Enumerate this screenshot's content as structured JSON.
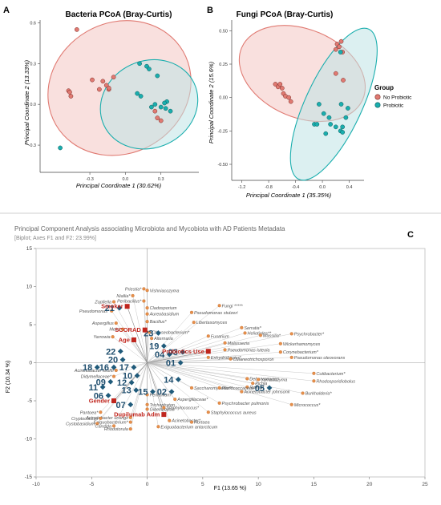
{
  "panels": {
    "a_label": "A",
    "b_label": "B",
    "c_label": "C"
  },
  "colors": {
    "no_probiotic": "#e07a72",
    "no_probiotic_fill": "#f4c7c2",
    "probiotic": "#1aaeae",
    "probiotic_fill": "#bfe3e5",
    "biplot_obs": "#1f5a7a",
    "biplot_var": "#c0261e",
    "biplot_var_label": "#c0261e",
    "biplot_feature": "#e8904b",
    "biplot_obs_label": "#1f4e6e"
  },
  "legend": {
    "title": "Group",
    "items": [
      "No Probiotic",
      "Probiotic"
    ]
  },
  "chart_data": [
    {
      "type": "scatter",
      "title": "Bacteria PCoA (Bray-Curtis)",
      "xlabel": "Principal Coordinate 1 (30.62%)",
      "ylabel": "Principal Coordinate 2 (13.33%)",
      "xlim": [
        -0.72,
        0.62
      ],
      "ylim": [
        -0.5,
        0.62
      ],
      "xticks": [
        -0.3,
        0.0,
        0.3
      ],
      "xtick_labels": [
        "-0.3",
        "0.0",
        "0.3"
      ],
      "yticks": [
        -0.3,
        0.0,
        0.3,
        0.6
      ],
      "ytick_labels": [
        "-0.3",
        "0.0",
        "0.3",
        "0.6"
      ],
      "series": [
        {
          "name": "No Probiotic",
          "x": [
            -0.41,
            -0.48,
            -0.47,
            -0.46,
            -0.28,
            -0.22,
            -0.19,
            -0.16,
            -0.14,
            -0.1,
            0.25,
            0.27,
            0.3,
            -0.14
          ],
          "y": [
            0.55,
            0.1,
            0.09,
            0.06,
            0.18,
            0.11,
            0.17,
            0.14,
            0.11,
            0.2,
            -0.05,
            -0.1,
            -0.12,
            0.12
          ]
        },
        {
          "name": "Probiotic",
          "x": [
            0.12,
            0.18,
            0.2,
            0.27,
            0.1,
            0.13,
            0.25,
            0.3,
            0.35,
            0.34,
            0.38,
            -0.55,
            0.22,
            0.33
          ],
          "y": [
            0.3,
            0.28,
            0.26,
            0.21,
            0.08,
            0.06,
            0.0,
            -0.02,
            0.02,
            -0.03,
            -0.05,
            -0.32,
            -0.02,
            0.01
          ]
        }
      ],
      "ellipses": [
        {
          "group": "No Probiotic",
          "cx": -0.05,
          "cy": 0.12,
          "rx": 0.62,
          "ry": 0.48,
          "angle_deg": -30
        },
        {
          "group": "Probiotic",
          "cx": 0.2,
          "cy": 0.0,
          "rx": 0.42,
          "ry": 0.32,
          "angle_deg": -25
        }
      ]
    },
    {
      "type": "scatter",
      "title": "Fungi PCoA (Bray-Curtis)",
      "xlabel": "Principal Coordinate 1 (35.35%)",
      "ylabel": "Principal Coordinate 2 (15.6%)",
      "xlim": [
        -1.35,
        0.62
      ],
      "ylim": [
        -0.62,
        0.58
      ],
      "xticks": [
        -1.2,
        -0.8,
        -0.4,
        0.0,
        0.4
      ],
      "xtick_labels": [
        "-1.2",
        "-0.8",
        "-0.4",
        "0.0",
        "0.4"
      ],
      "yticks": [
        -0.5,
        -0.25,
        0.0,
        0.25,
        0.5
      ],
      "ytick_labels": [
        "-0.50",
        "-0.25",
        "0.00",
        "0.25",
        "0.50"
      ],
      "series": [
        {
          "name": "No Probiotic",
          "x": [
            -0.7,
            -0.66,
            -0.63,
            -0.6,
            -0.58,
            -0.55,
            -0.5,
            -0.47,
            0.22,
            0.28,
            0.25,
            0.3,
            0.2,
            0.2,
            0.31
          ],
          "y": [
            0.1,
            0.08,
            0.1,
            0.07,
            0.03,
            0.01,
            0.0,
            -0.03,
            0.4,
            0.42,
            0.38,
            0.34,
            0.36,
            0.18,
            0.13
          ]
        },
        {
          "name": "Probiotic",
          "x": [
            0.27,
            -0.05,
            0.02,
            0.1,
            0.12,
            0.2,
            0.27,
            0.35,
            0.38,
            0.28,
            -0.12,
            -0.08,
            0.05,
            0.3,
            0.3
          ],
          "y": [
            0.34,
            -0.05,
            -0.12,
            -0.15,
            -0.2,
            -0.22,
            -0.25,
            -0.15,
            -0.08,
            -0.05,
            -0.2,
            -0.2,
            -0.27,
            -0.26,
            -0.22
          ]
        }
      ],
      "ellipses": [
        {
          "group": "No Probiotic",
          "cx": -0.3,
          "cy": 0.18,
          "rx": 0.98,
          "ry": 0.33,
          "angle_deg": 23
        },
        {
          "group": "Probiotic",
          "cx": 0.17,
          "cy": -0.05,
          "rx": 0.42,
          "ry": 0.62,
          "angle_deg": 25
        }
      ]
    },
    {
      "type": "scatter",
      "title": "Principal Component Analysis associating Microbiota and  Mycobiota with AD Patients Metadata",
      "subtitle": "[Biplot; Axes F1 and F2: 23.99%]",
      "xlabel": "F1 (13.65 %)",
      "ylabel": "F2 (10.34 %)",
      "xlim": [
        -10,
        25
      ],
      "ylim": [
        -15,
        15
      ],
      "xticks": [
        -10,
        -5,
        0,
        5,
        10,
        15,
        20,
        25
      ],
      "yticks": [
        -15,
        -10,
        -5,
        0,
        5,
        10,
        15
      ],
      "grid": false,
      "observations": [
        {
          "label": "21",
          "x": -2.5,
          "y": 7.2
        },
        {
          "label": "23",
          "x": 1.0,
          "y": 3.9
        },
        {
          "label": "19",
          "x": 1.5,
          "y": 2.2
        },
        {
          "label": "04",
          "x": 2.0,
          "y": 1.1
        },
        {
          "label": "03",
          "x": 3.2,
          "y": 1.4
        },
        {
          "label": "01",
          "x": 3.0,
          "y": 0.0
        },
        {
          "label": "22",
          "x": -2.4,
          "y": 1.5
        },
        {
          "label": "20",
          "x": -2.2,
          "y": 0.4
        },
        {
          "label": "18",
          "x": -4.5,
          "y": -0.6
        },
        {
          "label": "16",
          "x": -3.0,
          "y": -0.6
        },
        {
          "label": "17",
          "x": -1.2,
          "y": -0.6
        },
        {
          "label": "10",
          "x": -0.9,
          "y": -1.7
        },
        {
          "label": "12",
          "x": -1.4,
          "y": -2.6
        },
        {
          "label": "09",
          "x": -3.3,
          "y": -2.5
        },
        {
          "label": "11",
          "x": -4.0,
          "y": -3.2
        },
        {
          "label": "13",
          "x": -1.0,
          "y": -3.6
        },
        {
          "label": "06",
          "x": -3.5,
          "y": -4.3
        },
        {
          "label": "15",
          "x": 0.5,
          "y": -3.8
        },
        {
          "label": "14",
          "x": 2.8,
          "y": -2.2
        },
        {
          "label": "02",
          "x": 2.2,
          "y": -3.8
        },
        {
          "label": "07",
          "x": -1.5,
          "y": -5.5
        },
        {
          "label": "05",
          "x": 11.0,
          "y": -3.3
        }
      ],
      "variables": [
        {
          "label": "Smoker",
          "x": -1.8,
          "y": 7.4
        },
        {
          "label": "Age",
          "x": -1.2,
          "y": 3.0
        },
        {
          "label": "SCORAD",
          "x": -0.2,
          "y": 4.3
        },
        {
          "label": "Probiotics Use",
          "x": 5.5,
          "y": 1.5
        },
        {
          "label": "Gender",
          "x": -3.0,
          "y": -5.0
        },
        {
          "label": "Dupilumab Adm",
          "x": 1.5,
          "y": -6.8
        }
      ],
      "features": [
        {
          "label": "Priestia*",
          "x": -0.3,
          "y": 9.7
        },
        {
          "label": "Vishniacozyma",
          "x": 0.0,
          "y": 9.5
        },
        {
          "label": "Niallia*",
          "x": -1.3,
          "y": 8.8
        },
        {
          "label": "Peribacillus*",
          "x": -0.3,
          "y": 8.1
        },
        {
          "label": "Zopfiella",
          "x": -3.0,
          "y": 8.0
        },
        {
          "label": "Cladosporium",
          "x": 0.0,
          "y": 7.2
        },
        {
          "label": "Fungi *****",
          "x": 6.5,
          "y": 7.5
        },
        {
          "label": "Pseudomonas*",
          "x": -3.2,
          "y": 6.8
        },
        {
          "label": "Aureobasidium",
          "x": 0.0,
          "y": 6.4
        },
        {
          "label": "Pseudomonas stutzeri",
          "x": 4.0,
          "y": 6.6
        },
        {
          "label": "Libertasomyces",
          "x": 4.2,
          "y": 5.3
        },
        {
          "label": "Aspergillus",
          "x": -2.8,
          "y": 5.2
        },
        {
          "label": "Bacillus*",
          "x": 0.0,
          "y": 5.4
        },
        {
          "label": "Meira",
          "x": -2.2,
          "y": 4.4
        },
        {
          "label": "Chryseobacterium*",
          "x": 0.2,
          "y": 4.0
        },
        {
          "label": "Serratia*",
          "x": 8.5,
          "y": 4.6
        },
        {
          "label": "Heliotiales**",
          "x": 8.8,
          "y": 3.9
        },
        {
          "label": "Massilia*",
          "x": 10.2,
          "y": 3.6
        },
        {
          "label": "Psychrobacter*",
          "x": 13.0,
          "y": 3.8
        },
        {
          "label": "Yarrowia",
          "x": -3.1,
          "y": 3.4
        },
        {
          "label": "Alternaria",
          "x": 0.4,
          "y": 3.2
        },
        {
          "label": "Fusarium",
          "x": 5.5,
          "y": 3.5
        },
        {
          "label": "Malassezia",
          "x": 7.0,
          "y": 2.6
        },
        {
          "label": "Wickerhamomyces",
          "x": 12.0,
          "y": 2.5
        },
        {
          "label": "Pseudomonas luteola",
          "x": 7.0,
          "y": 1.7
        },
        {
          "label": "Corynebacterium*",
          "x": 12.0,
          "y": 1.4
        },
        {
          "label": "Pseudomonas oleovorans",
          "x": 13.0,
          "y": 0.7
        },
        {
          "label": "Enhydrobacter*",
          "x": 5.5,
          "y": 0.7
        },
        {
          "label": "Cutaneotrichosporon",
          "x": 7.5,
          "y": 0.5
        },
        {
          "label": "Acinetobacter lwoffii",
          "x": -2.8,
          "y": -1.0
        },
        {
          "label": "Didymellaceae*",
          "x": -3.0,
          "y": -1.8
        },
        {
          "label": "Debaryomyces",
          "x": 9.0,
          "y": -2.1
        },
        {
          "label": "Yamadazyma",
          "x": 10.0,
          "y": -2.2
        },
        {
          "label": "Cutibacterium*",
          "x": 15.0,
          "y": -1.4
        },
        {
          "label": "Pichia",
          "x": 9.5,
          "y": -2.7
        },
        {
          "label": "Rhodosporidiobolus",
          "x": 15.0,
          "y": -2.4
        },
        {
          "label": "Rothia*",
          "x": 9.0,
          "y": -3.2
        },
        {
          "label": "Saccharomycetes**",
          "x": 4.0,
          "y": -3.3
        },
        {
          "label": "Planococcaceae**",
          "x": 6.5,
          "y": -3.3
        },
        {
          "label": "Acinetobacter johnsonii",
          "x": 8.5,
          "y": -3.8
        },
        {
          "label": "Burkholderia*",
          "x": 14.0,
          "y": -4.0
        },
        {
          "label": "Penicillium",
          "x": 0.0,
          "y": -4.2
        },
        {
          "label": "Asperglilaceae*",
          "x": 2.5,
          "y": -4.8
        },
        {
          "label": "Psychrobacter pulmonis",
          "x": 6.5,
          "y": -5.3
        },
        {
          "label": "Micrococcus*",
          "x": 13.0,
          "y": -5.5
        },
        {
          "label": "Trichophyton",
          "x": 0.0,
          "y": -5.5
        },
        {
          "label": "Gibellulopsis",
          "x": 0.0,
          "y": -6.1
        },
        {
          "label": "Staphylococcus*",
          "x": 1.5,
          "y": -5.9
        },
        {
          "label": "Staphylococcus aureus",
          "x": 5.5,
          "y": -6.5
        },
        {
          "label": "Pantoea*",
          "x": -4.2,
          "y": -6.5
        },
        {
          "label": "Acinetobacter ursingii",
          "x": -1.5,
          "y": -7.2
        },
        {
          "label": "Cryptococcus",
          "x": -4.2,
          "y": -7.3
        },
        {
          "label": "Acinetobacter*",
          "x": 2.0,
          "y": -7.6
        },
        {
          "label": "Hortaea",
          "x": 4.0,
          "y": -7.8
        },
        {
          "label": "Exiguobacterium*",
          "x": -1.5,
          "y": -7.8
        },
        {
          "label": "Cystobasidium",
          "x": -4.5,
          "y": -8.0
        },
        {
          "label": "Candida",
          "x": -3.0,
          "y": -8.3
        },
        {
          "label": "Exiguobacterium antarcticum",
          "x": 1.0,
          "y": -8.4
        },
        {
          "label": "Rhodotorula",
          "x": -1.5,
          "y": -8.7
        }
      ]
    }
  ]
}
